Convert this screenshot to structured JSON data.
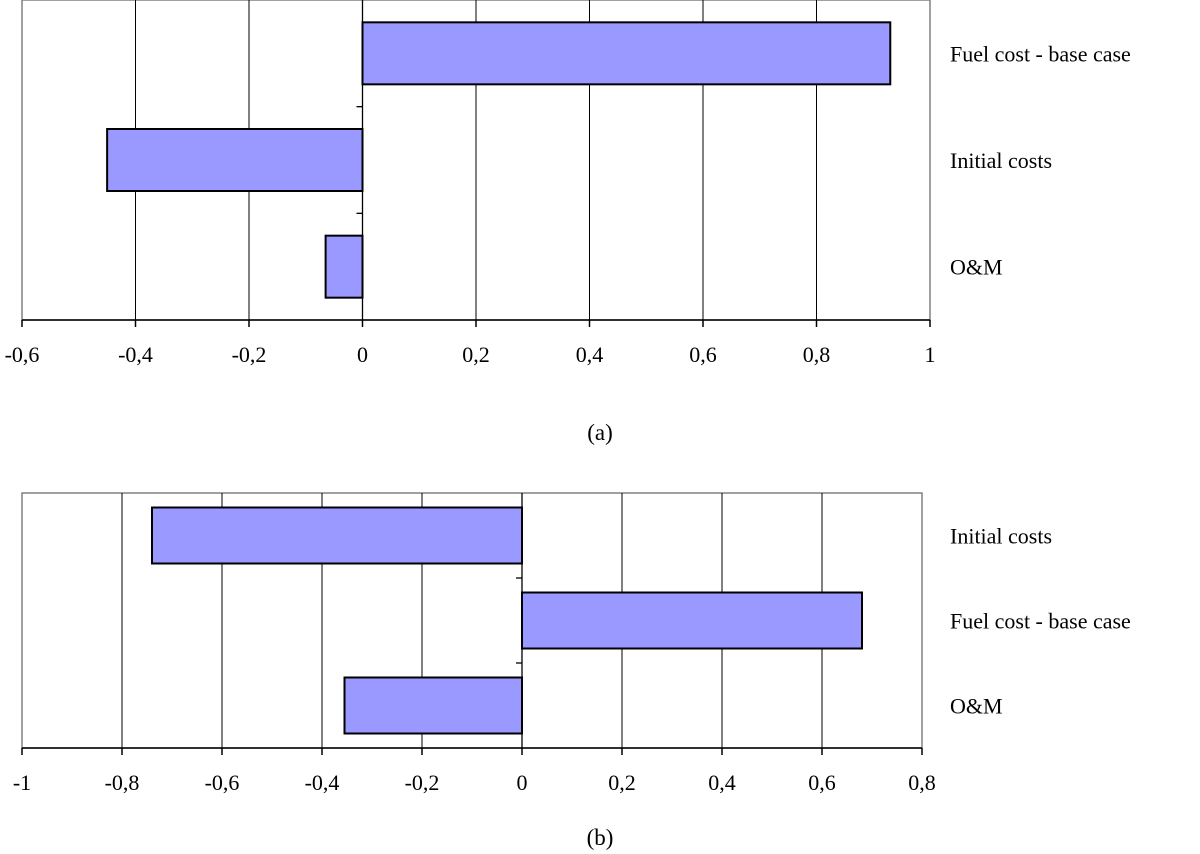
{
  "colors": {
    "bar_fill": "#9999ff",
    "bar_stroke": "#000000",
    "grid": "#000000",
    "frame": "#808080",
    "background": "#ffffff"
  },
  "chart_data": [
    {
      "type": "bar",
      "orientation": "horizontal",
      "caption": "(a)",
      "categories": [
        "Fuel cost - base case",
        "Initial costs",
        "O&M"
      ],
      "values": [
        0.93,
        -0.45,
        -0.065
      ],
      "xlim": [
        -0.6,
        1
      ],
      "ticks": [
        -0.6,
        -0.4,
        -0.2,
        0,
        0.2,
        0.4,
        0.6,
        0.8,
        1
      ],
      "tick_labels": [
        "-0,6",
        "-0,4",
        "-0,2",
        "0",
        "0,2",
        "0,4",
        "0,6",
        "0,8",
        "1"
      ],
      "grid": true,
      "legend": "none"
    },
    {
      "type": "bar",
      "orientation": "horizontal",
      "caption": "(b)",
      "categories": [
        "Initial costs",
        "Fuel cost - base case",
        "O&M"
      ],
      "values": [
        -0.74,
        0.68,
        -0.355
      ],
      "xlim": [
        -1,
        0.8
      ],
      "ticks": [
        -1,
        -0.8,
        -0.6,
        -0.4,
        -0.2,
        0,
        0.2,
        0.4,
        0.6,
        0.8
      ],
      "tick_labels": [
        "-1",
        "-0,8",
        "-0,6",
        "-0,4",
        "-0,2",
        "0",
        "0,2",
        "0,4",
        "0,6",
        "0,8"
      ],
      "grid": true,
      "legend": "none"
    }
  ]
}
